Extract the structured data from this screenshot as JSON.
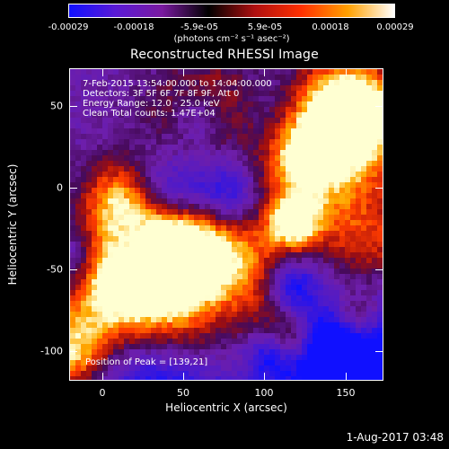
{
  "colorbar": {
    "labels": [
      "-0.00029",
      "-0.00018",
      "-5.9e-05",
      "5.9e-05",
      "0.00018",
      "0.00029"
    ],
    "units": "(photons cm⁻² s⁻¹ asec⁻²)",
    "colors": [
      "#1010ff",
      "#5a1ad6",
      "#7a1aa0",
      "#000000",
      "#b01010",
      "#ff3000",
      "#ffa000",
      "#ffffff"
    ]
  },
  "plot": {
    "title": "Reconstructed RHESSI Image",
    "overlay_lines": [
      "7-Feb-2015 13:54:00.000 to 14:04:00.000",
      "Detectors: 3F 5F 6F 7F 8F 9F, Att 0",
      "Energy Range: 12.0 - 25.0 keV",
      "Clean     Total counts: 1.47E+04"
    ],
    "peak_text": "Position of Peak = [139,21]",
    "xlabel": "Heliocentric X (arcsec)",
    "ylabel": "Heliocentric Y (arcsec)",
    "xticks": [
      "0",
      "50",
      "100",
      "150"
    ],
    "yticks": [
      "50",
      "0",
      "-50",
      "-100"
    ]
  },
  "timestamp": "1-Aug-2017 03:48"
}
